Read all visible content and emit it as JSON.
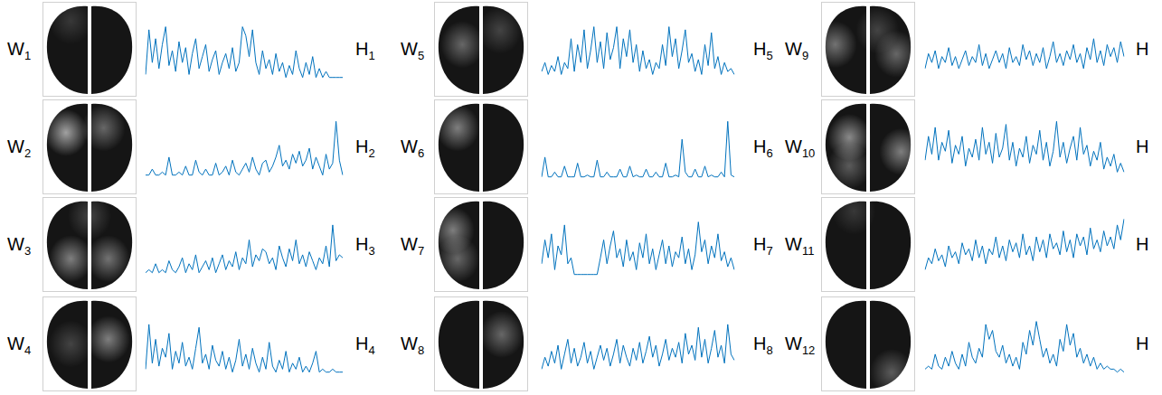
{
  "images": [
    {
      "label": {
        "text": "W",
        "subscript": "1"
      },
      "spots": [
        {
          "x": 0.3,
          "y": 0.2,
          "strength": 0.15
        }
      ]
    },
    {
      "label": {
        "text": "W",
        "subscript": "2"
      },
      "spots": [
        {
          "x": 0.25,
          "y": 0.35,
          "strength": 0.6
        },
        {
          "x": 0.65,
          "y": 0.3,
          "strength": 0.35
        }
      ]
    },
    {
      "label": {
        "text": "W",
        "subscript": "3"
      },
      "spots": [
        {
          "x": 0.3,
          "y": 0.65,
          "strength": 0.45
        },
        {
          "x": 0.7,
          "y": 0.65,
          "strength": 0.4
        },
        {
          "x": 0.5,
          "y": 0.2,
          "strength": 0.2
        }
      ]
    },
    {
      "label": {
        "text": "W",
        "subscript": "4"
      },
      "spots": [
        {
          "x": 0.7,
          "y": 0.45,
          "strength": 0.45
        },
        {
          "x": 0.3,
          "y": 0.5,
          "strength": 0.2
        }
      ]
    },
    {
      "label": {
        "text": "W",
        "subscript": "5"
      },
      "spots": [
        {
          "x": 0.3,
          "y": 0.45,
          "strength": 0.35
        },
        {
          "x": 0.7,
          "y": 0.3,
          "strength": 0.2
        }
      ]
    },
    {
      "label": {
        "text": "W",
        "subscript": "6"
      },
      "spots": [
        {
          "x": 0.25,
          "y": 0.3,
          "strength": 0.45
        }
      ]
    },
    {
      "label": {
        "text": "W",
        "subscript": "7"
      },
      "spots": [
        {
          "x": 0.2,
          "y": 0.35,
          "strength": 0.45
        },
        {
          "x": 0.25,
          "y": 0.65,
          "strength": 0.35
        }
      ]
    },
    {
      "label": {
        "text": "W",
        "subscript": "8"
      },
      "spots": [
        {
          "x": 0.72,
          "y": 0.4,
          "strength": 0.35
        }
      ]
    },
    {
      "label": {
        "text": "W",
        "subscript": "9"
      },
      "spots": [
        {
          "x": 0.15,
          "y": 0.45,
          "strength": 0.4
        },
        {
          "x": 0.8,
          "y": 0.55,
          "strength": 0.35
        },
        {
          "x": 0.6,
          "y": 0.3,
          "strength": 0.2
        }
      ]
    },
    {
      "label": {
        "text": "W",
        "subscript": "10"
      },
      "spots": [
        {
          "x": 0.3,
          "y": 0.4,
          "strength": 0.5
        },
        {
          "x": 0.85,
          "y": 0.55,
          "strength": 0.45
        },
        {
          "x": 0.3,
          "y": 0.7,
          "strength": 0.3
        }
      ]
    },
    {
      "label": {
        "text": "W",
        "subscript": "11"
      },
      "spots": [
        {
          "x": 0.35,
          "y": 0.15,
          "strength": 0.15
        }
      ]
    },
    {
      "label": {
        "text": "W",
        "subscript": "12"
      },
      "spots": [
        {
          "x": 0.75,
          "y": 0.8,
          "strength": 0.3
        }
      ]
    }
  ],
  "chart_data": [
    {
      "type": "line",
      "label": {
        "text": "H",
        "subscript": "1"
      },
      "color": "#0072bd",
      "ylim": [
        0,
        1
      ],
      "tick_labels": false,
      "grid": false,
      "values": [
        0.1,
        0.85,
        0.3,
        0.7,
        0.2,
        0.6,
        0.9,
        0.25,
        0.5,
        0.15,
        0.65,
        0.3,
        0.55,
        0.1,
        0.45,
        0.7,
        0.2,
        0.4,
        0.6,
        0.15,
        0.35,
        0.5,
        0.1,
        0.3,
        0.45,
        0.2,
        0.55,
        0.15,
        0.3,
        0.9,
        0.75,
        0.4,
        0.85,
        0.3,
        0.1,
        0.5,
        0.2,
        0.35,
        0.1,
        0.45,
        0.15,
        0.3,
        0.05,
        0.25,
        0.1,
        0.5,
        0.2,
        0.05,
        0.3,
        0.1,
        0.4,
        0.05,
        0.2,
        0.05,
        0.15,
        0.05,
        0.05,
        0.05,
        0.05,
        0.05
      ]
    },
    {
      "type": "line",
      "label": {
        "text": "H",
        "subscript": "2"
      },
      "color": "#0072bd",
      "ylim": [
        0,
        1
      ],
      "tick_labels": false,
      "grid": false,
      "values": [
        0.05,
        0.05,
        0.15,
        0.05,
        0.05,
        0.1,
        0.05,
        0.35,
        0.05,
        0.05,
        0.1,
        0.05,
        0.2,
        0.05,
        0.05,
        0.3,
        0.1,
        0.05,
        0.15,
        0.05,
        0.05,
        0.25,
        0.05,
        0.1,
        0.2,
        0.05,
        0.3,
        0.1,
        0.05,
        0.15,
        0.25,
        0.1,
        0.35,
        0.15,
        0.05,
        0.25,
        0.3,
        0.1,
        0.2,
        0.35,
        0.55,
        0.2,
        0.3,
        0.15,
        0.4,
        0.25,
        0.45,
        0.2,
        0.3,
        0.5,
        0.15,
        0.35,
        0.2,
        0.05,
        0.4,
        0.15,
        0.25,
        0.95,
        0.3,
        0.05
      ]
    },
    {
      "type": "line",
      "label": {
        "text": "H",
        "subscript": "3"
      },
      "color": "#0072bd",
      "ylim": [
        0,
        1
      ],
      "tick_labels": false,
      "grid": false,
      "values": [
        0.05,
        0.1,
        0.05,
        0.2,
        0.05,
        0.1,
        0.05,
        0.25,
        0.1,
        0.05,
        0.15,
        0.3,
        0.05,
        0.2,
        0.1,
        0.35,
        0.05,
        0.15,
        0.25,
        0.1,
        0.3,
        0.05,
        0.2,
        0.35,
        0.1,
        0.25,
        0.15,
        0.4,
        0.1,
        0.3,
        0.2,
        0.6,
        0.15,
        0.35,
        0.25,
        0.45,
        0.4,
        0.2,
        0.3,
        0.1,
        0.5,
        0.3,
        0.15,
        0.45,
        0.25,
        0.6,
        0.2,
        0.35,
        0.15,
        0.4,
        0.25,
        0.1,
        0.3,
        0.2,
        0.5,
        0.15,
        0.85,
        0.25,
        0.35,
        0.3
      ]
    },
    {
      "type": "line",
      "label": {
        "text": "H",
        "subscript": "4"
      },
      "color": "#0072bd",
      "ylim": [
        0,
        1
      ],
      "tick_labels": false,
      "grid": false,
      "values": [
        0.1,
        0.85,
        0.2,
        0.6,
        0.15,
        0.45,
        0.3,
        0.7,
        0.1,
        0.4,
        0.2,
        0.55,
        0.15,
        0.3,
        0.1,
        0.45,
        0.8,
        0.2,
        0.35,
        0.1,
        0.5,
        0.25,
        0.15,
        0.4,
        0.1,
        0.3,
        0.05,
        0.25,
        0.6,
        0.15,
        0.35,
        0.1,
        0.45,
        0.2,
        0.05,
        0.3,
        0.1,
        0.55,
        0.15,
        0.05,
        0.25,
        0.1,
        0.4,
        0.05,
        0.2,
        0.1,
        0.3,
        0.05,
        0.15,
        0.05,
        0.2,
        0.4,
        0.05,
        0.1,
        0.05,
        0.05,
        0.1,
        0.05,
        0.05,
        0.05
      ]
    },
    {
      "type": "line",
      "label": {
        "text": "H",
        "subscript": "5"
      },
      "color": "#0072bd",
      "ylim": [
        0,
        1
      ],
      "tick_labels": false,
      "grid": false,
      "values": [
        0.15,
        0.3,
        0.1,
        0.25,
        0.15,
        0.4,
        0.1,
        0.3,
        0.2,
        0.7,
        0.15,
        0.6,
        0.3,
        0.85,
        0.2,
        0.5,
        0.9,
        0.3,
        0.65,
        0.2,
        0.8,
        0.35,
        0.55,
        0.9,
        0.2,
        0.7,
        0.4,
        0.85,
        0.3,
        0.6,
        0.15,
        0.5,
        0.2,
        0.35,
        0.1,
        0.3,
        0.2,
        0.6,
        0.25,
        0.9,
        0.4,
        0.7,
        0.2,
        0.5,
        0.85,
        0.3,
        0.45,
        0.15,
        0.35,
        0.1,
        0.6,
        0.25,
        0.8,
        0.2,
        0.4,
        0.1,
        0.3,
        0.15,
        0.2,
        0.1
      ]
    },
    {
      "type": "line",
      "label": {
        "text": "H",
        "subscript": "6"
      },
      "color": "#0072bd",
      "ylim": [
        0,
        1
      ],
      "tick_labels": false,
      "grid": false,
      "values": [
        0.02,
        0.35,
        0.02,
        0.02,
        0.1,
        0.02,
        0.02,
        0.2,
        0.02,
        0.02,
        0.02,
        0.25,
        0.02,
        0.02,
        0.05,
        0.02,
        0.02,
        0.3,
        0.02,
        0.02,
        0.1,
        0.02,
        0.02,
        0.02,
        0.15,
        0.02,
        0.02,
        0.2,
        0.02,
        0.05,
        0.02,
        0.02,
        0.15,
        0.02,
        0.02,
        0.1,
        0.02,
        0.02,
        0.25,
        0.02,
        0.02,
        0.05,
        0.02,
        0.65,
        0.1,
        0.02,
        0.02,
        0.15,
        0.02,
        0.02,
        0.2,
        0.02,
        0.05,
        0.02,
        0.02,
        0.1,
        0.02,
        0.95,
        0.05,
        0.02
      ]
    },
    {
      "type": "line",
      "label": {
        "text": "H",
        "subscript": "7"
      },
      "color": "#0072bd",
      "ylim": [
        0,
        1
      ],
      "tick_labels": false,
      "grid": false,
      "values": [
        0.2,
        0.6,
        0.3,
        0.7,
        0.1,
        0.5,
        0.35,
        0.85,
        0.2,
        0.3,
        0.02,
        0.02,
        0.02,
        0.02,
        0.02,
        0.02,
        0.02,
        0.02,
        0.3,
        0.6,
        0.2,
        0.5,
        0.75,
        0.3,
        0.45,
        0.15,
        0.6,
        0.25,
        0.4,
        0.1,
        0.55,
        0.3,
        0.7,
        0.2,
        0.45,
        0.1,
        0.35,
        0.6,
        0.2,
        0.5,
        0.15,
        0.4,
        0.3,
        0.65,
        0.2,
        0.45,
        0.1,
        0.35,
        0.9,
        0.4,
        0.6,
        0.2,
        0.5,
        0.3,
        0.7,
        0.25,
        0.4,
        0.15,
        0.3,
        0.1
      ]
    },
    {
      "type": "line",
      "label": {
        "text": "H",
        "subscript": "8"
      },
      "color": "#0072bd",
      "ylim": [
        0,
        1
      ],
      "tick_labels": false,
      "grid": false,
      "values": [
        0.1,
        0.3,
        0.15,
        0.4,
        0.2,
        0.5,
        0.1,
        0.35,
        0.6,
        0.2,
        0.45,
        0.15,
        0.3,
        0.55,
        0.2,
        0.4,
        0.1,
        0.3,
        0.5,
        0.25,
        0.45,
        0.15,
        0.35,
        0.6,
        0.2,
        0.5,
        0.3,
        0.15,
        0.45,
        0.25,
        0.55,
        0.2,
        0.4,
        0.65,
        0.3,
        0.5,
        0.15,
        0.35,
        0.6,
        0.25,
        0.45,
        0.3,
        0.55,
        0.2,
        0.7,
        0.35,
        0.5,
        0.25,
        0.8,
        0.3,
        0.6,
        0.2,
        0.45,
        0.75,
        0.3,
        0.5,
        0.2,
        0.85,
        0.35,
        0.25
      ]
    },
    {
      "type": "line",
      "label": {
        "text": "H"
      },
      "color": "#0072bd",
      "ylim": [
        0,
        1
      ],
      "tick_labels": false,
      "grid": false,
      "values": [
        0.2,
        0.45,
        0.3,
        0.5,
        0.2,
        0.4,
        0.3,
        0.55,
        0.25,
        0.4,
        0.2,
        0.35,
        0.5,
        0.25,
        0.4,
        0.3,
        0.6,
        0.25,
        0.45,
        0.2,
        0.35,
        0.5,
        0.3,
        0.45,
        0.2,
        0.55,
        0.3,
        0.4,
        0.25,
        0.6,
        0.35,
        0.5,
        0.25,
        0.45,
        0.3,
        0.55,
        0.2,
        0.4,
        0.65,
        0.3,
        0.45,
        0.25,
        0.5,
        0.35,
        0.6,
        0.3,
        0.45,
        0.2,
        0.55,
        0.35,
        0.7,
        0.3,
        0.5,
        0.25,
        0.6,
        0.4,
        0.55,
        0.3,
        0.65,
        0.4
      ]
    },
    {
      "type": "line",
      "label": {
        "text": "H"
      },
      "color": "#0072bd",
      "ylim": [
        0,
        1
      ],
      "tick_labels": false,
      "grid": false,
      "values": [
        0.3,
        0.7,
        0.4,
        0.85,
        0.3,
        0.6,
        0.45,
        0.8,
        0.25,
        0.55,
        0.4,
        0.7,
        0.2,
        0.5,
        0.35,
        0.65,
        0.3,
        0.85,
        0.4,
        0.6,
        0.25,
        0.75,
        0.35,
        0.5,
        0.9,
        0.3,
        0.6,
        0.2,
        0.5,
        0.35,
        0.7,
        0.25,
        0.55,
        0.4,
        0.8,
        0.3,
        0.6,
        0.2,
        0.45,
        0.95,
        0.35,
        0.6,
        0.25,
        0.5,
        0.7,
        0.3,
        0.85,
        0.4,
        0.55,
        0.2,
        0.45,
        0.3,
        0.6,
        0.15,
        0.35,
        0.2,
        0.4,
        0.1,
        0.25,
        0.1
      ]
    },
    {
      "type": "line",
      "label": {
        "text": "H"
      },
      "color": "#0072bd",
      "ylim": [
        0,
        1
      ],
      "tick_labels": false,
      "grid": false,
      "values": [
        0.1,
        0.3,
        0.2,
        0.45,
        0.25,
        0.35,
        0.15,
        0.5,
        0.3,
        0.4,
        0.2,
        0.55,
        0.35,
        0.45,
        0.25,
        0.6,
        0.3,
        0.5,
        0.2,
        0.45,
        0.35,
        0.65,
        0.3,
        0.5,
        0.25,
        0.6,
        0.4,
        0.55,
        0.3,
        0.7,
        0.35,
        0.5,
        0.25,
        0.65,
        0.4,
        0.6,
        0.3,
        0.7,
        0.45,
        0.55,
        0.35,
        0.75,
        0.4,
        0.6,
        0.3,
        0.7,
        0.5,
        0.65,
        0.35,
        0.8,
        0.45,
        0.6,
        0.4,
        0.75,
        0.5,
        0.65,
        0.45,
        0.85,
        0.6,
        0.95
      ]
    },
    {
      "type": "line",
      "label": {
        "text": "H"
      },
      "color": "#0072bd",
      "ylim": [
        0,
        1
      ],
      "tick_labels": false,
      "grid": false,
      "values": [
        0.1,
        0.15,
        0.1,
        0.35,
        0.15,
        0.1,
        0.3,
        0.15,
        0.4,
        0.2,
        0.1,
        0.35,
        0.15,
        0.55,
        0.3,
        0.2,
        0.45,
        0.3,
        0.85,
        0.6,
        0.75,
        0.4,
        0.3,
        0.5,
        0.2,
        0.35,
        0.15,
        0.3,
        0.1,
        0.55,
        0.35,
        0.75,
        0.5,
        0.9,
        0.6,
        0.3,
        0.45,
        0.2,
        0.35,
        0.15,
        0.6,
        0.4,
        0.85,
        0.5,
        0.7,
        0.3,
        0.45,
        0.2,
        0.35,
        0.15,
        0.3,
        0.1,
        0.2,
        0.1,
        0.15,
        0.1,
        0.1,
        0.05,
        0.1,
        0.05
      ]
    }
  ]
}
